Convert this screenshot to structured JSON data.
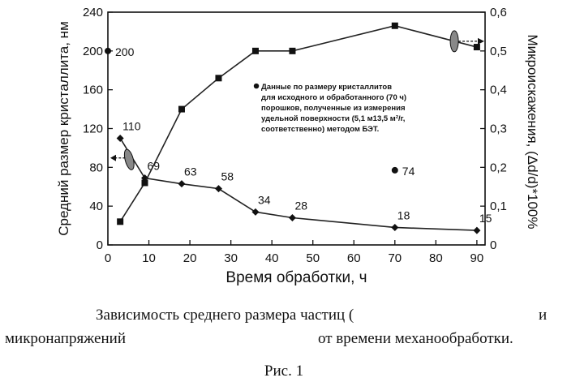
{
  "chart_data": {
    "type": "line",
    "xlabel": "Время обработки, ч",
    "ylabel_left": "Средний размер кристаллита, нм",
    "ylabel_right": "Микроискажения, (Δd/d)*100%",
    "x_ticks": [
      "0",
      "10",
      "20",
      "30",
      "40",
      "50",
      "60",
      "70",
      "80",
      "90"
    ],
    "y_ticks_left": [
      "0",
      "40",
      "80",
      "120",
      "160",
      "200",
      "240"
    ],
    "y_ticks_right": [
      "0",
      "0,1",
      "0,2",
      "0,3",
      "0,4",
      "0,5",
      "0,6"
    ],
    "xlim": [
      0,
      92
    ],
    "ylim_left": [
      0,
      240
    ],
    "ylim_right": [
      0,
      0.6
    ],
    "series": [
      {
        "axis": "left",
        "marker": "diamond",
        "x": [
          3,
          9,
          18,
          27,
          36,
          45,
          70,
          90
        ],
        "y": [
          110,
          69,
          63,
          58,
          34,
          28,
          18,
          15
        ],
        "labels": [
          "110",
          "69",
          "63",
          "58",
          "34",
          "28",
          "18",
          "15"
        ]
      },
      {
        "axis": "right",
        "marker": "square",
        "x": [
          3,
          9,
          18,
          27,
          36,
          45,
          70,
          90
        ],
        "y": [
          0.06,
          0.16,
          0.35,
          0.43,
          0.5,
          0.5,
          0.565,
          0.51
        ]
      }
    ],
    "bet_points": [
      {
        "x": 0,
        "y": 200,
        "label": "200"
      },
      {
        "x": 70,
        "y": 77,
        "label": "74"
      }
    ],
    "legend_text": [
      "Данные по размеру кристаллитов",
      "для исходного и обработанного (70 ч)",
      "порошков, полученные из измерения",
      "удельной поверхности (5,1 м13,5 м²/г,",
      "соответственно) методом БЭТ."
    ]
  },
  "caption": {
    "line1_start": "Зависимость среднего размера частиц (",
    "line1_end": "и",
    "line2_start": "микронапряжений",
    "line2_end": "от времени механообработки.",
    "fig": "Рис. 1"
  },
  "colors": {
    "line": "#222222",
    "ink": "#111111"
  }
}
